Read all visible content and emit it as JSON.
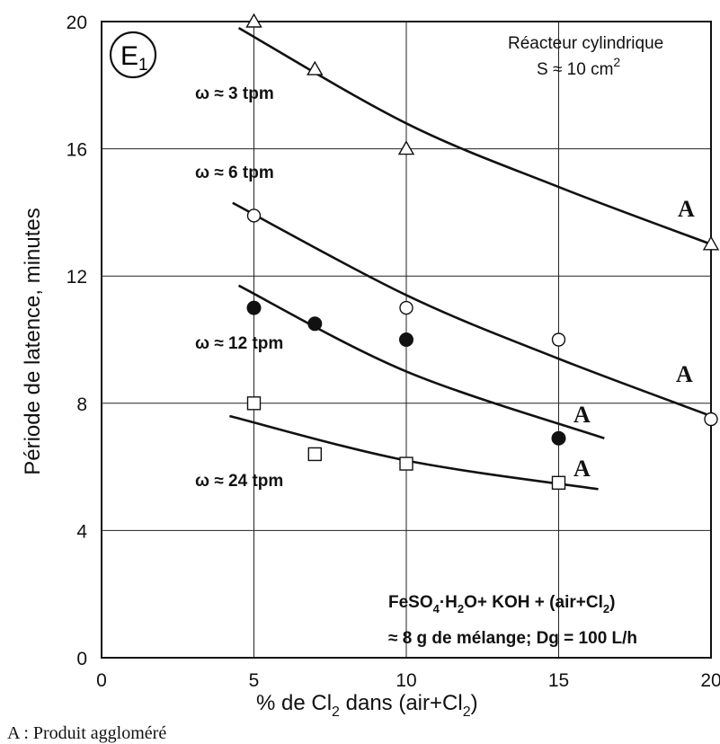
{
  "chart_data": {
    "type": "scatter",
    "title": "",
    "xlabel_parts": [
      "% de Cl",
      "2",
      " dans (air+Cl",
      "2",
      ")"
    ],
    "ylabel": "Période de latence, minutes",
    "xlim": [
      0,
      20
    ],
    "ylim": [
      0,
      20
    ],
    "x_ticks": [
      "0",
      "5",
      "10",
      "15",
      "20"
    ],
    "y_ticks": [
      "0",
      "4",
      "8",
      "12",
      "16",
      "20"
    ],
    "grid": true,
    "panel_label": {
      "main": "E",
      "sub": "1"
    },
    "reactor_note": {
      "line1": "Réacteur cylindrique",
      "line2_main": "S ≈ 10 cm",
      "line2_sup": "2"
    },
    "mixture_note": {
      "line1_parts": [
        "FeSO",
        "4",
        "·H",
        "2",
        "O+ KOH + (air+Cl",
        "2",
        ")"
      ],
      "line2": "≈ 8 g de mélange; Dg = 100 L/h"
    },
    "agglomerate_marker": "A",
    "footnote": "A : Produit aggloméré",
    "series": [
      {
        "name": "ω ≈ 3 tpm",
        "marker": "triangle-open",
        "points": [
          [
            5,
            20.0
          ],
          [
            7,
            18.5
          ],
          [
            10,
            16.0
          ],
          [
            20,
            13.0
          ]
        ],
        "fit": [
          [
            4.5,
            19.8
          ],
          [
            10,
            16.8
          ],
          [
            15,
            14.8
          ],
          [
            20,
            13.0
          ]
        ]
      },
      {
        "name": "ω ≈ 6 tpm",
        "marker": "circle-open",
        "points": [
          [
            5,
            13.9
          ],
          [
            10,
            11.0
          ],
          [
            15,
            10.0
          ],
          [
            20,
            7.5
          ]
        ],
        "fit": [
          [
            4.3,
            14.3
          ],
          [
            10,
            11.4
          ],
          [
            15,
            9.4
          ],
          [
            20,
            7.6
          ]
        ]
      },
      {
        "name": "ω ≈ 12 tpm",
        "marker": "circle-filled",
        "points": [
          [
            5,
            11.0
          ],
          [
            7,
            10.5
          ],
          [
            10,
            10.0
          ],
          [
            15,
            6.9
          ]
        ],
        "fit": [
          [
            4.5,
            11.7
          ],
          [
            10,
            9.0
          ],
          [
            16.5,
            6.9
          ]
        ]
      },
      {
        "name": "ω ≈ 24 tpm",
        "marker": "square-open",
        "points": [
          [
            5,
            8.0
          ],
          [
            7,
            6.4
          ],
          [
            10,
            6.1
          ],
          [
            15,
            5.5
          ]
        ],
        "fit": [
          [
            4.2,
            7.6
          ],
          [
            10,
            6.2
          ],
          [
            16.3,
            5.3
          ]
        ]
      }
    ]
  }
}
